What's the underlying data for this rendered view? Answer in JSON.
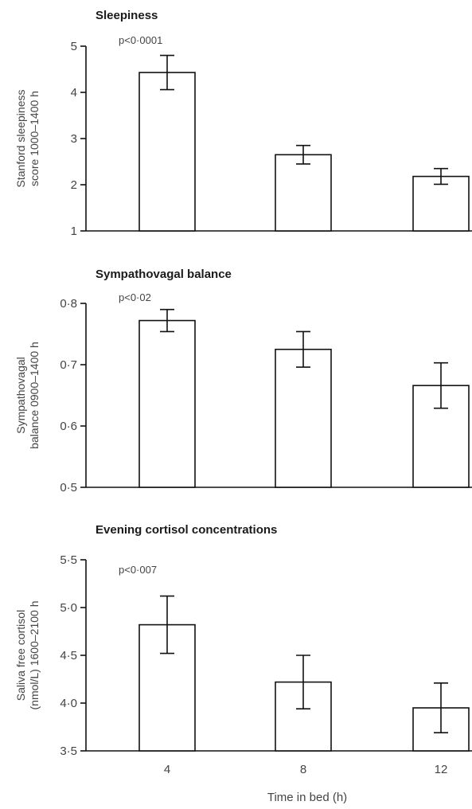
{
  "chart_data": [
    {
      "type": "bar",
      "title": "Sleepiness",
      "ylabel": [
        "Stanford sleepiness",
        "score 1000–1400 h"
      ],
      "annotation": "p<0·0001",
      "categories": [
        "4",
        "8",
        "12"
      ],
      "values": [
        4.43,
        2.65,
        2.18
      ],
      "error": [
        0.37,
        0.2,
        0.17
      ],
      "ylim": [
        1,
        5
      ],
      "yticks": [
        1,
        2,
        3,
        4,
        5
      ],
      "ytick_labels": [
        "1",
        "2",
        "3",
        "4",
        "5"
      ]
    },
    {
      "type": "bar",
      "title": "Sympathovagal balance",
      "ylabel": [
        "Sympathovagal",
        "balance 0900–1400 h"
      ],
      "annotation": "p<0·02",
      "categories": [
        "4",
        "8",
        "12"
      ],
      "values": [
        0.772,
        0.725,
        0.666
      ],
      "error": [
        0.018,
        0.029,
        0.037
      ],
      "ylim": [
        0.5,
        0.8
      ],
      "yticks": [
        0.5,
        0.6,
        0.7,
        0.8
      ],
      "ytick_labels": [
        "0·5",
        "0·6",
        "0·7",
        "0·8"
      ]
    },
    {
      "type": "bar",
      "title": "Evening cortisol concentrations",
      "ylabel": [
        "Saliva free cortisol",
        "(nmol/L) 1600–2100 h"
      ],
      "annotation": "p<0·007",
      "categories": [
        "4",
        "8",
        "12"
      ],
      "values": [
        4.82,
        4.22,
        3.95
      ],
      "error": [
        0.3,
        0.28,
        0.26
      ],
      "ylim": [
        3.5,
        5.5
      ],
      "yticks": [
        3.5,
        4.0,
        4.5,
        5.0,
        5.5
      ],
      "ytick_labels": [
        "3·5",
        "4·0",
        "4·5",
        "5·0",
        "5·5"
      ]
    }
  ],
  "xlabel": "Time in bed (h)",
  "colors": {
    "bar_fill": "#ffffff",
    "stroke": "#111111",
    "text": "#444444"
  }
}
